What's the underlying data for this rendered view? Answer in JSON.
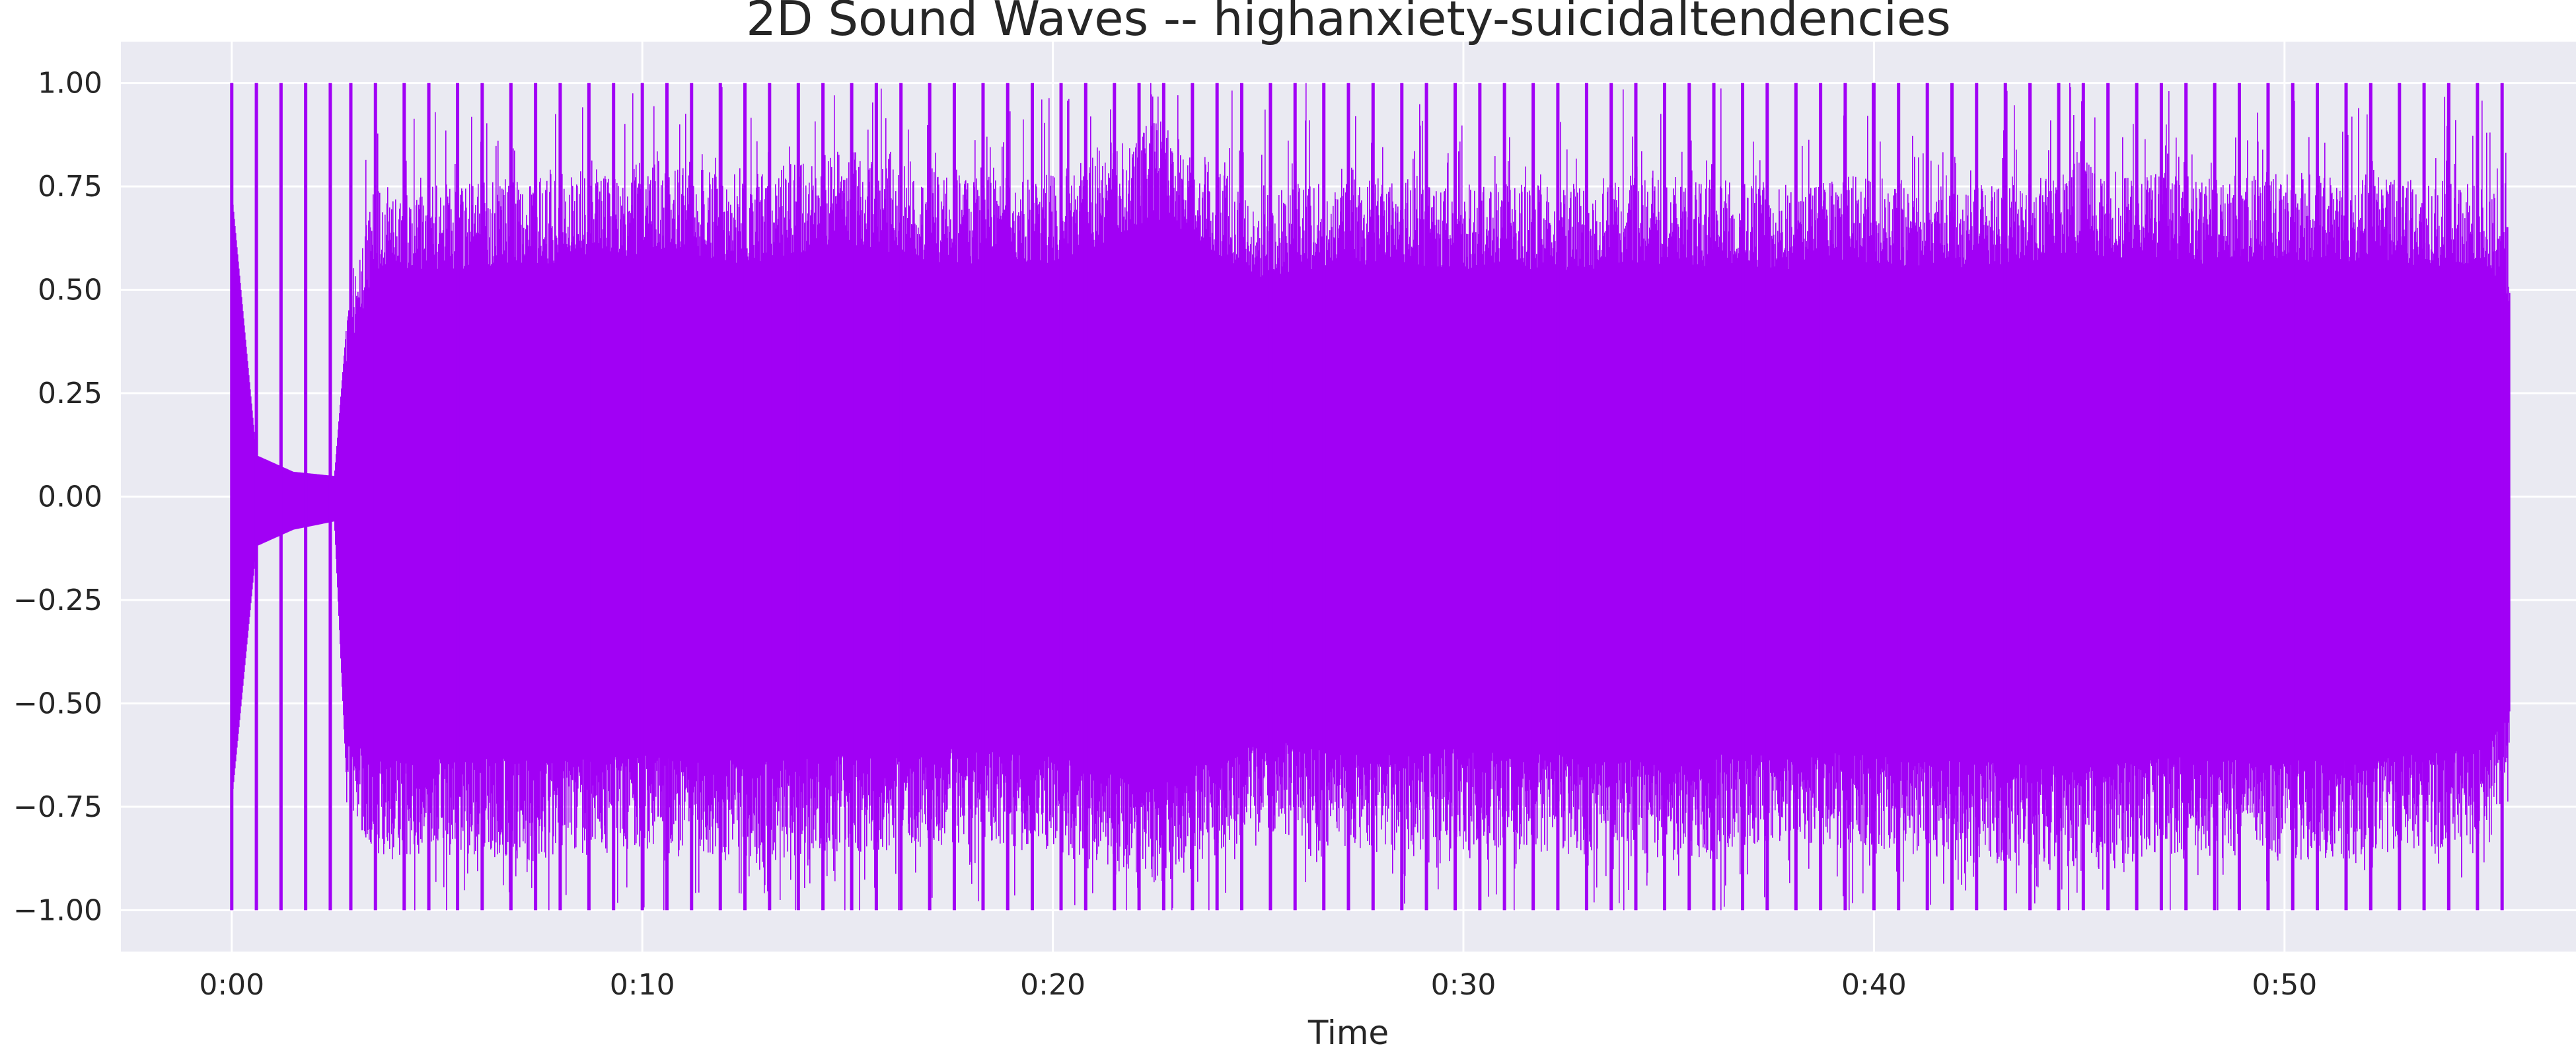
{
  "chart_data": {
    "type": "line",
    "title": "2D Sound Waves -- highanxiety-suicidaltendencies",
    "xlabel": "Time",
    "ylabel": "",
    "x_unit": "seconds",
    "xlim": [
      -2.7,
      57.1
    ],
    "ylim": [
      -1.1,
      1.1
    ],
    "duration": 55.5,
    "xticks": [
      {
        "value": 0,
        "label": "0:00"
      },
      {
        "value": 10,
        "label": "0:10"
      },
      {
        "value": 20,
        "label": "0:20"
      },
      {
        "value": 30,
        "label": "0:30"
      },
      {
        "value": 40,
        "label": "0:40"
      },
      {
        "value": 50,
        "label": "0:50"
      }
    ],
    "yticks": [
      {
        "value": 1.0,
        "label": "1.00"
      },
      {
        "value": 0.75,
        "label": "0.75"
      },
      {
        "value": 0.5,
        "label": "0.50"
      },
      {
        "value": 0.25,
        "label": "0.25"
      },
      {
        "value": 0.0,
        "label": "0.00"
      },
      {
        "value": -0.25,
        "label": "−0.25"
      },
      {
        "value": -0.5,
        "label": "−0.50"
      },
      {
        "value": -0.75,
        "label": "−0.75"
      },
      {
        "value": -1.0,
        "label": "−1.00"
      }
    ],
    "grid": true,
    "colors": {
      "waveform": "#a100f5",
      "plot_background": "#eaeaf2",
      "grid": "#ffffff",
      "text": "#262626"
    },
    "series": [
      {
        "envelope": [
          {
            "x": 0.0,
            "max": 0.74,
            "min": -0.74
          },
          {
            "x": 0.6,
            "max": 0.1,
            "min": -0.12
          },
          {
            "x": 1.5,
            "max": 0.06,
            "min": -0.08
          },
          {
            "x": 2.5,
            "max": 0.05,
            "min": -0.06
          },
          {
            "x": 2.8,
            "max": 0.42,
            "min": -0.7
          },
          {
            "x": 3.5,
            "max": 0.7,
            "min": -0.82
          },
          {
            "x": 5.0,
            "max": 0.7,
            "min": -0.8
          },
          {
            "x": 7.5,
            "max": 0.72,
            "min": -0.82
          },
          {
            "x": 10.0,
            "max": 0.75,
            "min": -0.8
          },
          {
            "x": 12.5,
            "max": 0.72,
            "min": -0.82
          },
          {
            "x": 15.0,
            "max": 0.78,
            "min": -0.8
          },
          {
            "x": 17.5,
            "max": 0.72,
            "min": -0.78
          },
          {
            "x": 20.0,
            "max": 0.72,
            "min": -0.8
          },
          {
            "x": 22.5,
            "max": 0.85,
            "min": -0.88
          },
          {
            "x": 25.0,
            "max": 0.68,
            "min": -0.75
          },
          {
            "x": 27.5,
            "max": 0.72,
            "min": -0.8
          },
          {
            "x": 30.0,
            "max": 0.7,
            "min": -0.78
          },
          {
            "x": 32.5,
            "max": 0.7,
            "min": -0.8
          },
          {
            "x": 35.0,
            "max": 0.72,
            "min": -0.82
          },
          {
            "x": 37.5,
            "max": 0.7,
            "min": -0.78
          },
          {
            "x": 40.0,
            "max": 0.72,
            "min": -0.8
          },
          {
            "x": 42.5,
            "max": 0.7,
            "min": -0.82
          },
          {
            "x": 45.0,
            "max": 0.75,
            "min": -0.84
          },
          {
            "x": 47.5,
            "max": 0.72,
            "min": -0.8
          },
          {
            "x": 50.0,
            "max": 0.73,
            "min": -0.82
          },
          {
            "x": 52.5,
            "max": 0.72,
            "min": -0.8
          },
          {
            "x": 55.0,
            "max": 0.7,
            "min": -0.78
          },
          {
            "x": 55.5,
            "max": 0.6,
            "min": -0.6
          }
        ],
        "peaks": [
          0.0,
          0.6,
          1.2,
          1.8,
          2.4,
          2.9,
          3.5,
          4.2,
          4.8,
          5.5,
          6.1,
          6.8,
          7.4,
          8.0,
          8.7,
          9.3,
          10.0,
          10.6,
          11.2,
          11.9,
          12.5,
          13.1,
          13.8,
          14.4,
          15.1,
          15.7,
          16.3,
          17.0,
          17.6,
          18.3,
          18.9,
          19.5,
          20.2,
          20.8,
          21.5,
          22.1,
          22.7,
          23.4,
          24.0,
          24.6,
          25.3,
          25.9,
          26.6,
          27.2,
          27.8,
          28.5,
          29.1,
          29.8,
          30.4,
          31.0,
          31.7,
          32.3,
          33.0,
          33.6,
          34.2,
          34.9,
          35.5,
          36.1,
          36.8,
          37.4,
          38.1,
          38.7,
          39.3,
          40.0,
          40.6,
          41.3,
          41.9,
          42.5,
          43.2,
          43.8,
          44.5,
          45.1,
          45.7,
          46.4,
          47.0,
          47.6,
          48.3,
          48.9,
          49.6,
          50.2,
          50.8,
          51.5,
          52.1,
          52.8,
          53.4,
          54.0,
          54.7,
          55.3
        ]
      }
    ]
  }
}
